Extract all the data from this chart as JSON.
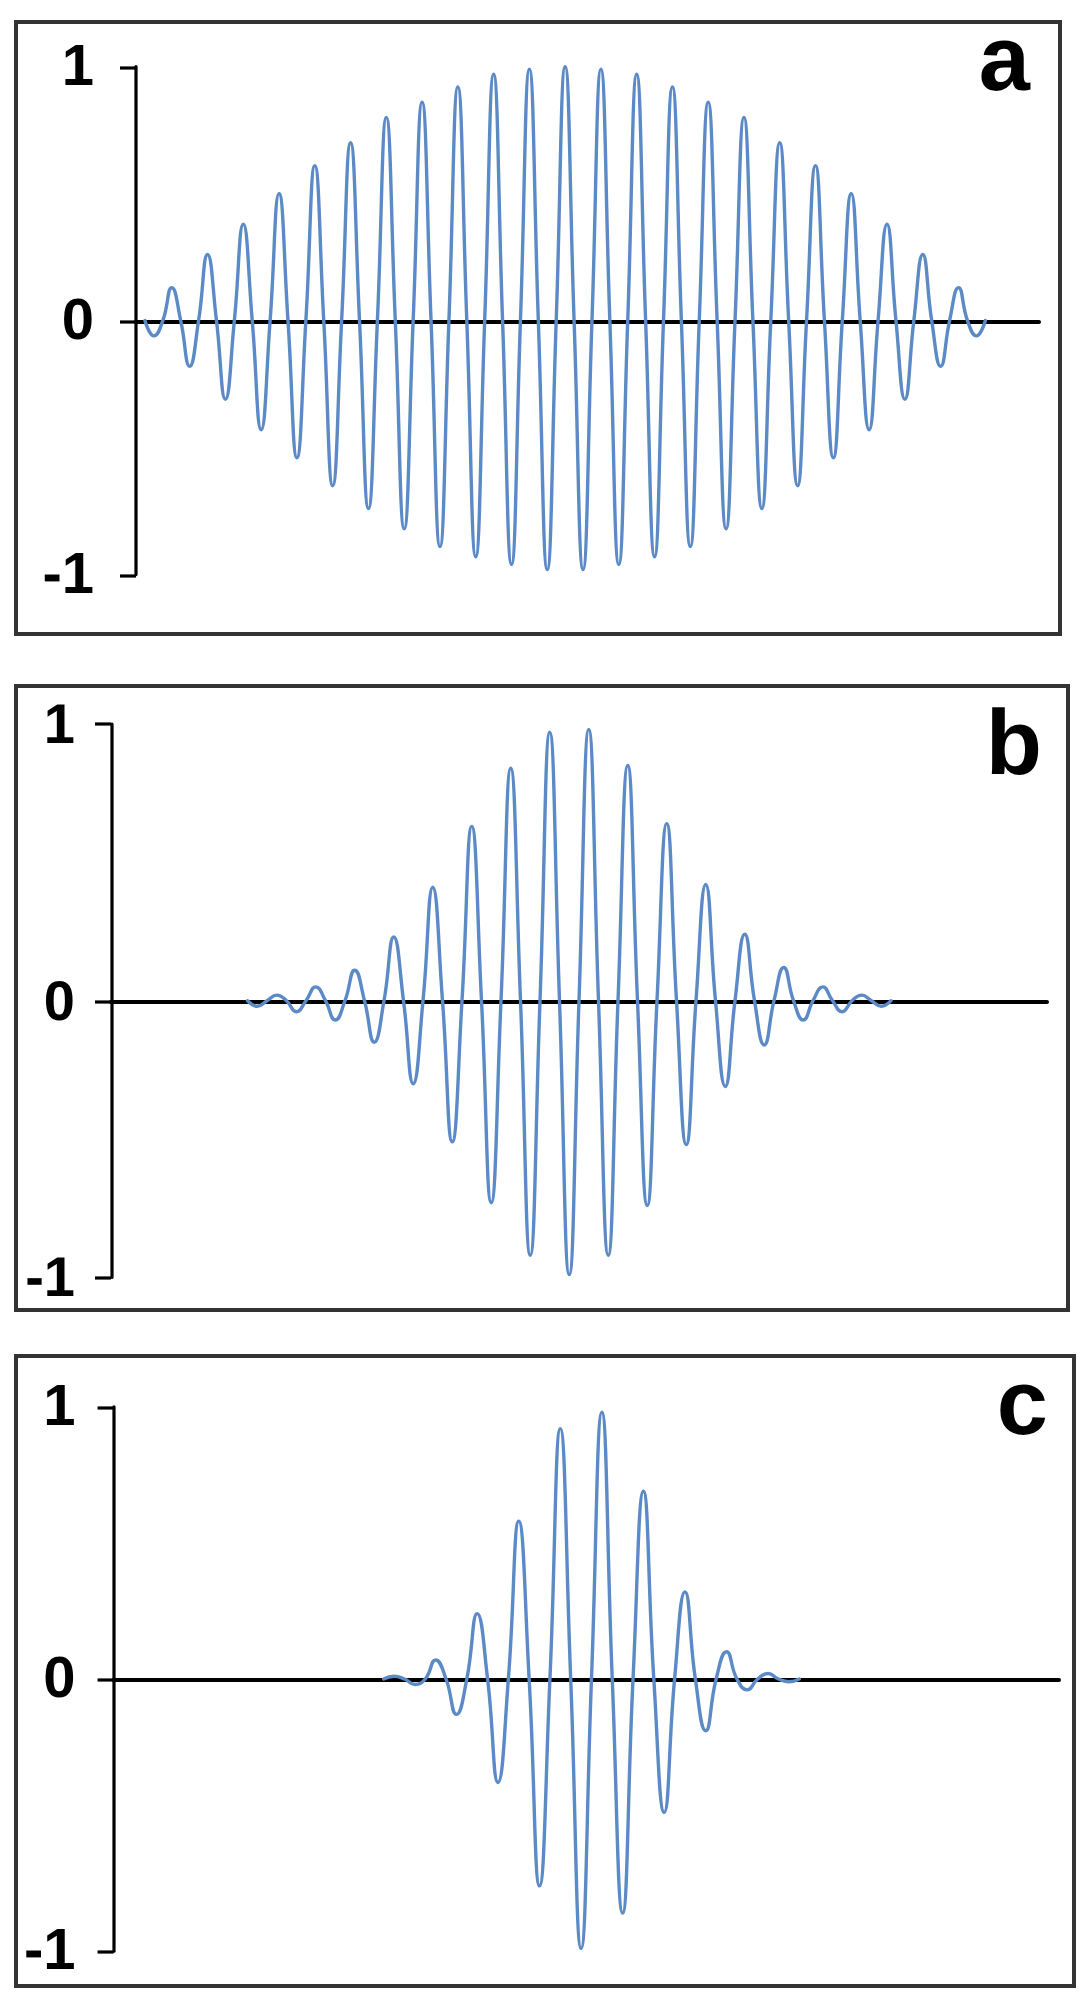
{
  "chart_data": [
    {
      "type": "line",
      "title": "a",
      "categories": [
        null,
        null,
        null,
        null,
        null,
        null,
        null,
        null,
        null,
        null,
        null,
        null,
        null,
        null,
        null,
        null,
        null,
        null,
        null,
        null,
        null,
        null,
        null,
        null,
        null,
        null,
        null,
        null,
        null,
        null,
        null,
        null,
        null,
        null,
        null,
        null,
        null,
        null,
        null,
        null,
        null,
        null,
        null,
        null,
        null,
        null,
        null,
        null,
        null,
        null,
        null,
        null,
        null,
        null,
        null,
        null,
        null,
        null,
        null,
        null,
        null,
        null,
        null,
        null,
        null,
        null,
        null,
        null,
        null,
        null,
        null,
        null,
        null,
        null,
        null,
        null,
        null,
        null,
        null,
        null,
        null,
        null,
        null,
        null,
        null,
        null,
        null,
        null,
        null,
        null,
        null,
        null,
        null,
        null,
        null,
        null,
        null,
        null,
        null,
        null,
        null,
        null
      ],
      "values": [
        null,
        0,
        -0.06,
        0,
        0.13,
        0,
        -0.18,
        0,
        0.26,
        0,
        -0.31,
        0,
        0.38,
        0,
        -0.43,
        0,
        0.5,
        0,
        -0.54,
        0,
        0.61,
        0,
        -0.65,
        0,
        0.7,
        0,
        -0.74,
        0,
        0.8,
        0,
        -0.82,
        0,
        0.86,
        0,
        -0.89,
        0,
        0.92,
        0,
        -0.93,
        0,
        0.97,
        0,
        -0.96,
        0,
        0.99,
        0,
        -0.98,
        0,
        1,
        0,
        -0.98,
        0,
        0.99,
        0,
        -0.96,
        0,
        0.97,
        0,
        -0.93,
        0,
        0.92,
        0,
        -0.89,
        0,
        0.86,
        0,
        -0.82,
        0,
        0.8,
        0,
        -0.74,
        0,
        0.7,
        0,
        -0.65,
        0,
        0.61,
        0,
        -0.54,
        0,
        0.5,
        0,
        -0.43,
        0,
        0.38,
        0,
        -0.31,
        0,
        0.26,
        0,
        -0.18,
        0,
        0.13,
        0,
        -0.06,
        0,
        null,
        null,
        null,
        null,
        null,
        null
      ],
      "color": "#5b8ac6",
      "ylim": [
        -1,
        1
      ],
      "yticks": [
        -1,
        0,
        1
      ],
      "tick_labels": "y"
    },
    {
      "type": "line",
      "title": "b",
      "categories": [
        null,
        null,
        null,
        null,
        null,
        null,
        null,
        null,
        null,
        null,
        null,
        null,
        null,
        null,
        null,
        null,
        null,
        null,
        null,
        null,
        null,
        null,
        null,
        null,
        null,
        null,
        null,
        null,
        null,
        null,
        null,
        null,
        null,
        null,
        null,
        null,
        null,
        null,
        null,
        null,
        null,
        null,
        null,
        null,
        null,
        null,
        null,
        null,
        null,
        null,
        null,
        null,
        null,
        null,
        null,
        null,
        null,
        null,
        null,
        null,
        null,
        null,
        null,
        null,
        null,
        null,
        null,
        null,
        null,
        null,
        null,
        null,
        null,
        null,
        null,
        null,
        null,
        null,
        null,
        null,
        null,
        null,
        null,
        null,
        null,
        null,
        null,
        null,
        null,
        null,
        null,
        null,
        null,
        null,
        null,
        null,
        null
      ],
      "values": [
        null,
        null,
        null,
        null,
        null,
        null,
        null,
        null,
        null,
        null,
        null,
        null,
        null,
        null,
        0,
        -0.02,
        0,
        0.02,
        0,
        -0.04,
        0,
        0.05,
        0,
        -0.07,
        0,
        0.11,
        0,
        -0.15,
        0,
        0.23,
        0,
        -0.3,
        0,
        0.41,
        0,
        -0.51,
        0,
        0.63,
        0,
        -0.73,
        0,
        0.84,
        0,
        -0.92,
        0,
        0.97,
        0,
        -0.99,
        0,
        0.98,
        0,
        -0.92,
        0,
        0.85,
        0,
        -0.74,
        0,
        0.64,
        0,
        -0.52,
        0,
        0.42,
        0,
        -0.31,
        0,
        0.24,
        0,
        -0.16,
        0,
        0.12,
        0,
        -0.07,
        0,
        0.05,
        0,
        -0.04,
        0,
        0.02,
        0,
        -0.02,
        0,
        null,
        null,
        null,
        null,
        null,
        null,
        null,
        null,
        null,
        null,
        null,
        null,
        null,
        null,
        null,
        null
      ],
      "color": "#5b8ac6",
      "ylim": [
        -1,
        1
      ],
      "yticks": [
        -1,
        0,
        1
      ],
      "tick_labels": "y"
    },
    {
      "type": "line",
      "title": "c",
      "categories": [
        null,
        null,
        null,
        null,
        null,
        null,
        null,
        null,
        null,
        null,
        null,
        null,
        null,
        null,
        null,
        null,
        null,
        null,
        null,
        null,
        null,
        null,
        null,
        null,
        null,
        null,
        null,
        null,
        null,
        null,
        null,
        null,
        null,
        null,
        null,
        null,
        null,
        null,
        null,
        null,
        null,
        null,
        null,
        null,
        null,
        null,
        null,
        null,
        null,
        null,
        null,
        null,
        null,
        null,
        null,
        null,
        null,
        null,
        null,
        null,
        null,
        null,
        null,
        null,
        null,
        null,
        null,
        null,
        null,
        null,
        null,
        null,
        null,
        null,
        null,
        null,
        null,
        null,
        null,
        null,
        null,
        null,
        null,
        null,
        null,
        null,
        null,
        null,
        null,
        null,
        null,
        null
      ],
      "values": [
        null,
        null,
        null,
        null,
        null,
        null,
        null,
        null,
        null,
        null,
        null,
        null,
        null,
        null,
        null,
        null,
        null,
        null,
        null,
        null,
        null,
        null,
        null,
        null,
        null,
        null,
        0,
        0.01,
        0,
        -0.02,
        0,
        0.07,
        0,
        -0.13,
        0,
        0.24,
        0,
        -0.38,
        0,
        0.58,
        0,
        -0.76,
        0,
        0.92,
        0,
        -0.99,
        0,
        0.98,
        0,
        -0.86,
        0,
        0.69,
        0,
        -0.49,
        0,
        0.32,
        0,
        -0.19,
        0,
        0.1,
        0,
        -0.04,
        0,
        0.02,
        0,
        -0.01,
        0,
        null,
        null,
        null,
        null,
        null,
        null,
        null,
        null,
        null,
        null,
        null,
        null,
        null,
        null,
        null,
        null,
        null,
        null,
        null,
        null,
        null,
        null,
        null,
        null,
        null
      ],
      "color": "#5b8ac6",
      "ylim": [
        -1,
        1
      ],
      "yticks": [
        -1,
        0,
        1
      ],
      "tick_labels": "y"
    }
  ]
}
